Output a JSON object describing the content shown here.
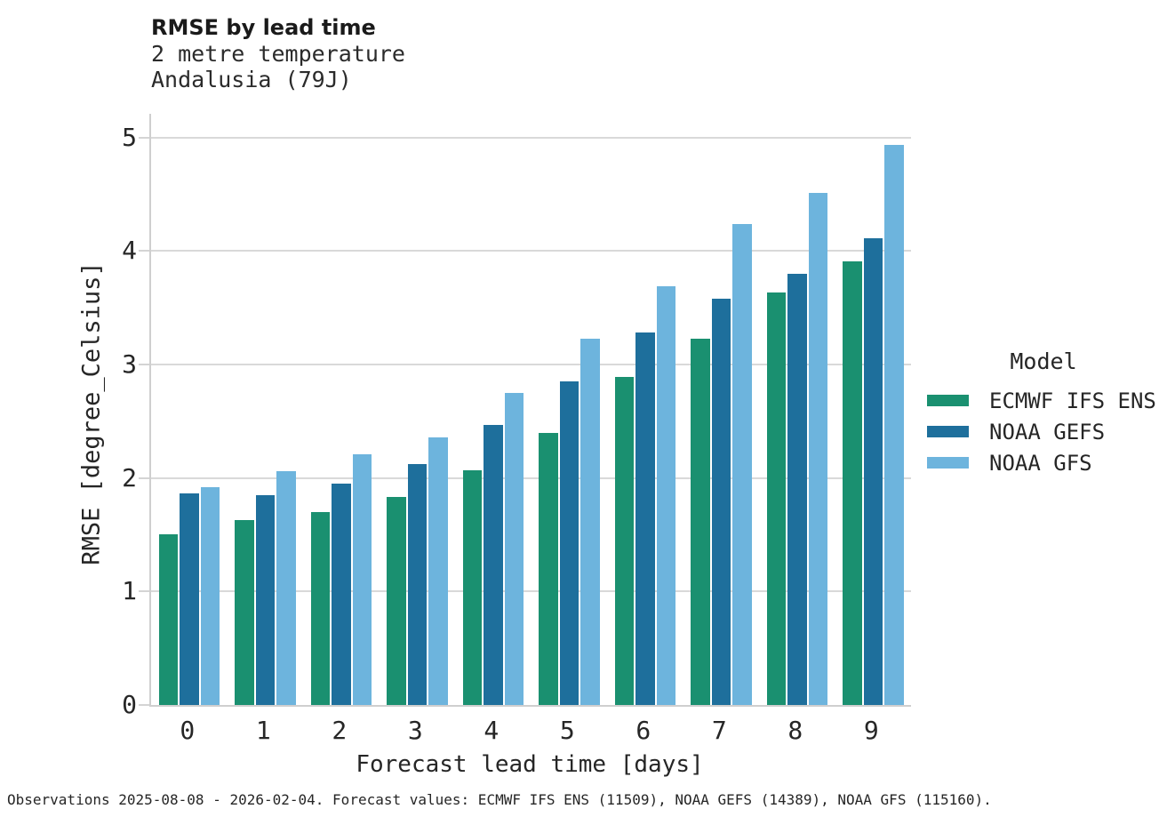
{
  "header": {
    "title": "RMSE by lead time",
    "subtitle_line1": "2 metre temperature",
    "subtitle_line2": "Andalusia (79J)"
  },
  "chart_data": {
    "type": "bar",
    "title": "RMSE by lead time",
    "subtitle": [
      "2 metre temperature",
      "Andalusia (79J)"
    ],
    "categories": [
      "0",
      "1",
      "2",
      "3",
      "4",
      "5",
      "6",
      "7",
      "8",
      "9"
    ],
    "series": [
      {
        "name": "ECMWF IFS ENS",
        "color": "#1a9070",
        "values": [
          1.5,
          1.63,
          1.7,
          1.83,
          2.07,
          2.4,
          2.89,
          3.23,
          3.63,
          3.91
        ]
      },
      {
        "name": "NOAA GEFS",
        "color": "#1e6f9c",
        "values": [
          1.86,
          1.85,
          1.95,
          2.12,
          2.47,
          2.85,
          3.28,
          3.58,
          3.8,
          4.11
        ]
      },
      {
        "name": "NOAA GFS",
        "color": "#6db4dd",
        "values": [
          1.92,
          2.06,
          2.21,
          2.36,
          2.75,
          3.23,
          3.69,
          4.24,
          4.51,
          4.93
        ]
      }
    ],
    "xlabel": "Forecast lead time [days]",
    "ylabel": "RMSE [degree_Celsius]",
    "ylim": [
      0,
      5
    ],
    "yticks": [
      0,
      1,
      2,
      3,
      4,
      5
    ],
    "grid": true,
    "legend_title": "Model",
    "legend_position": "right"
  },
  "legend": {
    "title": "Model",
    "items": [
      {
        "label": "ECMWF IFS ENS",
        "color": "#1a9070"
      },
      {
        "label": "NOAA GEFS",
        "color": "#1e6f9c"
      },
      {
        "label": "NOAA GFS",
        "color": "#6db4dd"
      }
    ]
  },
  "caption": "Observations 2025-08-08 - 2026-02-04. Forecast values: ECMWF IFS ENS (11509), NOAA GEFS (14389), NOAA GFS (115160)."
}
